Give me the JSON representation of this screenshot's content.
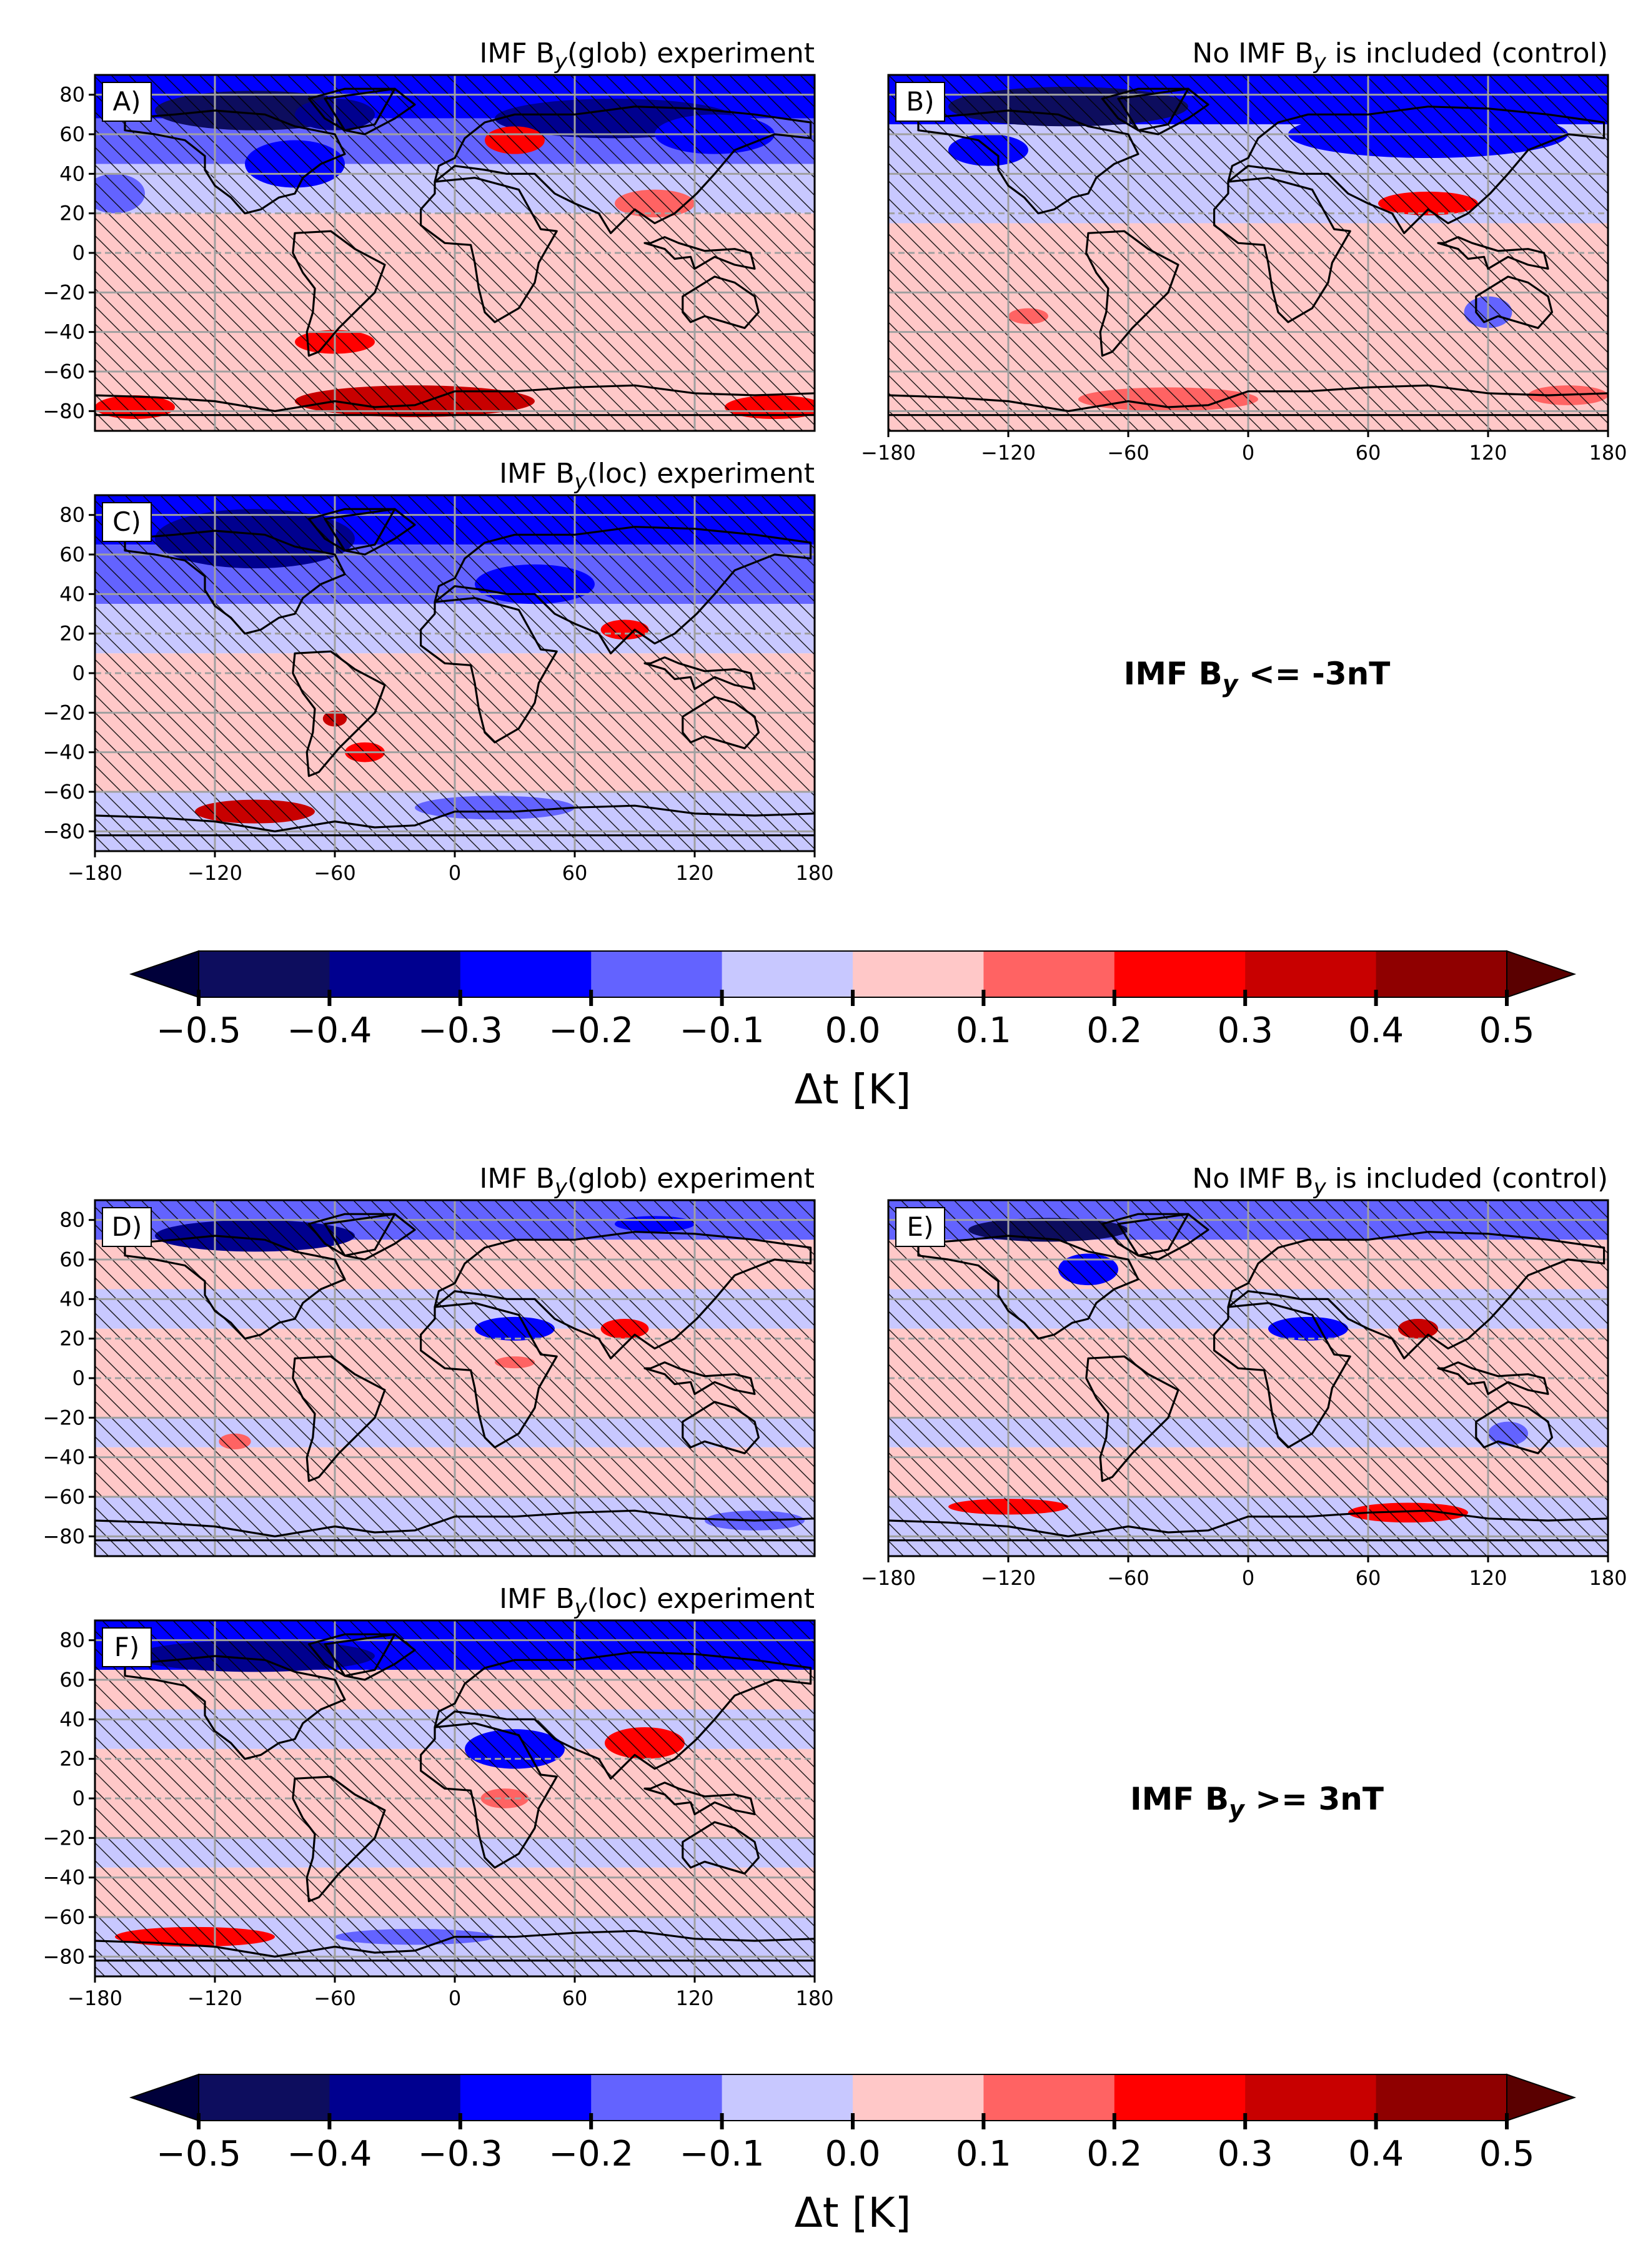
{
  "chart_data": [
    {
      "panel": "A)",
      "type": "heatmap",
      "title_pre": "IMF B",
      "title_sub": "y",
      "title_post": "(glob) experiment",
      "variable": "Δt [K]",
      "group": "IMF B_y <= -3nT",
      "xlim": [
        -180,
        180
      ],
      "ylim": [
        -90,
        90
      ],
      "xticks": [
        "−180",
        "−120",
        "−60",
        "0",
        "60",
        "120",
        "180"
      ],
      "yticks": [
        "80",
        "60",
        "40",
        "20",
        "0",
        "−20",
        "−40",
        "−60",
        "−80"
      ],
      "show_xticks": false,
      "show_yticks": true,
      "zonal_bands": [
        {
          "lat": [
            68,
            90
          ],
          "value": -0.25
        },
        {
          "lat": [
            45,
            68
          ],
          "value": -0.12
        },
        {
          "lat": [
            20,
            45
          ],
          "value": -0.05
        },
        {
          "lat": [
            -15,
            20
          ],
          "value": 0.04
        },
        {
          "lat": [
            -60,
            -15
          ],
          "value": 0.05
        },
        {
          "lat": [
            -90,
            -60
          ],
          "value": 0.08
        }
      ],
      "anomalies": [
        {
          "lon": -100,
          "lat": 72,
          "rlon": 50,
          "rlat": 10,
          "value": -0.45
        },
        {
          "lon": -60,
          "lat": 70,
          "rlon": 20,
          "rlat": 8,
          "value": -0.4
        },
        {
          "lon": 80,
          "lat": 68,
          "rlon": 60,
          "rlat": 10,
          "value": -0.32
        },
        {
          "lon": 130,
          "lat": 60,
          "rlon": 30,
          "rlat": 10,
          "value": -0.25
        },
        {
          "lon": -80,
          "lat": 45,
          "rlon": 25,
          "rlat": 12,
          "value": -0.25
        },
        {
          "lon": 30,
          "lat": 57,
          "rlon": 15,
          "rlat": 7,
          "value": 0.25
        },
        {
          "lon": 100,
          "lat": 25,
          "rlon": 20,
          "rlat": 7,
          "value": 0.18
        },
        {
          "lon": -60,
          "lat": -45,
          "rlon": 20,
          "rlat": 6,
          "value": 0.2
        },
        {
          "lon": -20,
          "lat": -75,
          "rlon": 60,
          "rlat": 8,
          "value": 0.3
        },
        {
          "lon": -160,
          "lat": -78,
          "rlon": 20,
          "rlat": 6,
          "value": 0.28
        },
        {
          "lon": 160,
          "lat": -78,
          "rlon": 25,
          "rlat": 6,
          "value": 0.25
        },
        {
          "lon": -170,
          "lat": 30,
          "rlon": 15,
          "rlat": 10,
          "value": -0.18
        }
      ]
    },
    {
      "panel": "B)",
      "type": "heatmap",
      "title_pre": "No IMF B",
      "title_sub": "y",
      "title_post": " is included (control)",
      "variable": "Δt [K]",
      "group": "IMF B_y <= -3nT",
      "xlim": [
        -180,
        180
      ],
      "ylim": [
        -90,
        90
      ],
      "xticks": [
        "−180",
        "−120",
        "−60",
        "0",
        "60",
        "120",
        "180"
      ],
      "yticks": [
        "80",
        "60",
        "40",
        "20",
        "0",
        "−20",
        "−40",
        "−60",
        "−80"
      ],
      "show_xticks": true,
      "show_yticks": false,
      "zonal_bands": [
        {
          "lat": [
            65,
            90
          ],
          "value": -0.22
        },
        {
          "lat": [
            40,
            65
          ],
          "value": -0.1
        },
        {
          "lat": [
            15,
            40
          ],
          "value": -0.04
        },
        {
          "lat": [
            -60,
            15
          ],
          "value": 0.05
        },
        {
          "lat": [
            -90,
            -60
          ],
          "value": 0.06
        }
      ],
      "anomalies": [
        {
          "lon": -90,
          "lat": 74,
          "rlon": 60,
          "rlat": 10,
          "value": -0.42
        },
        {
          "lon": 90,
          "lat": 60,
          "rlon": 70,
          "rlat": 12,
          "value": -0.3
        },
        {
          "lon": -130,
          "lat": 52,
          "rlon": 20,
          "rlat": 8,
          "value": -0.28
        },
        {
          "lon": 90,
          "lat": 25,
          "rlon": 25,
          "rlat": 6,
          "value": 0.25
        },
        {
          "lon": 120,
          "lat": -30,
          "rlon": 12,
          "rlat": 8,
          "value": -0.18
        },
        {
          "lon": -110,
          "lat": -32,
          "rlon": 10,
          "rlat": 4,
          "value": 0.15
        },
        {
          "lon": -40,
          "lat": -74,
          "rlon": 45,
          "rlat": 6,
          "value": 0.18
        },
        {
          "lon": 160,
          "lat": -72,
          "rlon": 20,
          "rlat": 5,
          "value": 0.15
        }
      ]
    },
    {
      "panel": "C)",
      "type": "heatmap",
      "title_pre": "IMF B",
      "title_sub": "y",
      "title_post": "(loc) experiment",
      "variable": "Δt [K]",
      "group": "IMF B_y <= -3nT",
      "xlim": [
        -180,
        180
      ],
      "ylim": [
        -90,
        90
      ],
      "xticks": [
        "−180",
        "−120",
        "−60",
        "0",
        "60",
        "120",
        "180"
      ],
      "yticks": [
        "80",
        "60",
        "40",
        "20",
        "0",
        "−20",
        "−40",
        "−60",
        "−80"
      ],
      "show_xticks": true,
      "show_yticks": true,
      "zonal_bands": [
        {
          "lat": [
            65,
            90
          ],
          "value": -0.25
        },
        {
          "lat": [
            35,
            65
          ],
          "value": -0.12
        },
        {
          "lat": [
            10,
            35
          ],
          "value": -0.05
        },
        {
          "lat": [
            -60,
            10
          ],
          "value": 0.05
        },
        {
          "lat": [
            -90,
            -60
          ],
          "value": -0.05
        }
      ],
      "anomalies": [
        {
          "lon": -100,
          "lat": 68,
          "rlon": 50,
          "rlat": 15,
          "value": -0.35
        },
        {
          "lon": 20,
          "lat": 80,
          "rlon": 60,
          "rlat": 6,
          "value": -0.3
        },
        {
          "lon": 40,
          "lat": 45,
          "rlon": 30,
          "rlat": 10,
          "value": -0.28
        },
        {
          "lon": 85,
          "lat": 22,
          "rlon": 12,
          "rlat": 5,
          "value": 0.2
        },
        {
          "lon": -60,
          "lat": -23,
          "rlon": 6,
          "rlat": 4,
          "value": 0.3
        },
        {
          "lon": -45,
          "lat": -40,
          "rlon": 10,
          "rlat": 5,
          "value": 0.2
        },
        {
          "lon": -100,
          "lat": -70,
          "rlon": 30,
          "rlat": 6,
          "value": 0.35
        },
        {
          "lon": 20,
          "lat": -68,
          "rlon": 40,
          "rlat": 6,
          "value": -0.15
        }
      ]
    },
    {
      "panel": "D)",
      "type": "heatmap",
      "title_pre": "IMF B",
      "title_sub": "y",
      "title_post": "(glob) experiment",
      "variable": "Δt [K]",
      "group": "IMF B_y >= 3nT",
      "xlim": [
        -180,
        180
      ],
      "ylim": [
        -90,
        90
      ],
      "xticks": [
        "−180",
        "−120",
        "−60",
        "0",
        "60",
        "120",
        "180"
      ],
      "yticks": [
        "80",
        "60",
        "40",
        "20",
        "0",
        "−20",
        "−40",
        "−60",
        "−80"
      ],
      "show_xticks": false,
      "show_yticks": true,
      "zonal_bands": [
        {
          "lat": [
            70,
            90
          ],
          "value": -0.2
        },
        {
          "lat": [
            45,
            70
          ],
          "value": 0.04
        },
        {
          "lat": [
            25,
            45
          ],
          "value": -0.05
        },
        {
          "lat": [
            -20,
            25
          ],
          "value": 0.05
        },
        {
          "lat": [
            -35,
            -20
          ],
          "value": -0.05
        },
        {
          "lat": [
            -60,
            -35
          ],
          "value": 0.05
        },
        {
          "lat": [
            -90,
            -60
          ],
          "value": -0.05
        }
      ],
      "anomalies": [
        {
          "lon": -100,
          "lat": 72,
          "rlon": 50,
          "rlat": 8,
          "value": -0.4
        },
        {
          "lon": 100,
          "lat": 78,
          "rlon": 20,
          "rlat": 4,
          "value": -0.25
        },
        {
          "lon": 30,
          "lat": 25,
          "rlon": 20,
          "rlat": 6,
          "value": -0.25
        },
        {
          "lon": 85,
          "lat": 25,
          "rlon": 12,
          "rlat": 5,
          "value": 0.22
        },
        {
          "lon": 30,
          "lat": 8,
          "rlon": 10,
          "rlat": 3,
          "value": 0.15
        },
        {
          "lon": -110,
          "lat": -32,
          "rlon": 8,
          "rlat": 4,
          "value": 0.15
        },
        {
          "lon": 150,
          "lat": -72,
          "rlon": 25,
          "rlat": 5,
          "value": -0.2
        }
      ]
    },
    {
      "panel": "E)",
      "type": "heatmap",
      "title_pre": "No IMF B",
      "title_sub": "y",
      "title_post": " is included (control)",
      "variable": "Δt [K]",
      "group": "IMF B_y >= 3nT",
      "xlim": [
        -180,
        180
      ],
      "ylim": [
        -90,
        90
      ],
      "xticks": [
        "−180",
        "−120",
        "−60",
        "0",
        "60",
        "120",
        "180"
      ],
      "yticks": [
        "80",
        "60",
        "40",
        "20",
        "0",
        "−20",
        "−40",
        "−60",
        "−80"
      ],
      "show_xticks": true,
      "show_yticks": false,
      "zonal_bands": [
        {
          "lat": [
            70,
            90
          ],
          "value": -0.18
        },
        {
          "lat": [
            45,
            70
          ],
          "value": 0.04
        },
        {
          "lat": [
            25,
            45
          ],
          "value": -0.05
        },
        {
          "lat": [
            -20,
            25
          ],
          "value": 0.05
        },
        {
          "lat": [
            -35,
            -20
          ],
          "value": -0.05
        },
        {
          "lat": [
            -60,
            -35
          ],
          "value": 0.05
        },
        {
          "lat": [
            -90,
            -60
          ],
          "value": -0.04
        }
      ],
      "anomalies": [
        {
          "lon": -100,
          "lat": 75,
          "rlon": 40,
          "rlat": 6,
          "value": -0.42
        },
        {
          "lon": -80,
          "lat": 55,
          "rlon": 15,
          "rlat": 8,
          "value": -0.25
        },
        {
          "lon": 30,
          "lat": 25,
          "rlon": 20,
          "rlat": 6,
          "value": -0.25
        },
        {
          "lon": 85,
          "lat": 25,
          "rlon": 10,
          "rlat": 5,
          "value": 0.3
        },
        {
          "lon": -120,
          "lat": -65,
          "rlon": 30,
          "rlat": 4,
          "value": 0.22
        },
        {
          "lon": 80,
          "lat": -68,
          "rlon": 30,
          "rlat": 5,
          "value": 0.25
        },
        {
          "lon": 130,
          "lat": -28,
          "rlon": 10,
          "rlat": 6,
          "value": -0.12
        }
      ]
    },
    {
      "panel": "F)",
      "type": "heatmap",
      "title_pre": "IMF B",
      "title_sub": "y",
      "title_post": "(loc) experiment",
      "variable": "Δt [K]",
      "group": "IMF B_y >= 3nT",
      "xlim": [
        -180,
        180
      ],
      "ylim": [
        -90,
        90
      ],
      "xticks": [
        "−180",
        "−120",
        "−60",
        "0",
        "60",
        "120",
        "180"
      ],
      "yticks": [
        "80",
        "60",
        "40",
        "20",
        "0",
        "−20",
        "−40",
        "−60",
        "−80"
      ],
      "show_xticks": true,
      "show_yticks": true,
      "zonal_bands": [
        {
          "lat": [
            65,
            90
          ],
          "value": -0.22
        },
        {
          "lat": [
            45,
            65
          ],
          "value": 0.04
        },
        {
          "lat": [
            25,
            45
          ],
          "value": -0.05
        },
        {
          "lat": [
            -20,
            25
          ],
          "value": 0.05
        },
        {
          "lat": [
            -35,
            -20
          ],
          "value": -0.04
        },
        {
          "lat": [
            -60,
            -35
          ],
          "value": 0.05
        },
        {
          "lat": [
            -90,
            -60
          ],
          "value": -0.05
        }
      ],
      "anomalies": [
        {
          "lon": -100,
          "lat": 72,
          "rlon": 60,
          "rlat": 8,
          "value": -0.4
        },
        {
          "lon": 30,
          "lat": 25,
          "rlon": 25,
          "rlat": 10,
          "value": -0.3
        },
        {
          "lon": 95,
          "lat": 28,
          "rlon": 20,
          "rlat": 8,
          "value": 0.2
        },
        {
          "lon": 25,
          "lat": 0,
          "rlon": 12,
          "rlat": 5,
          "value": 0.15
        },
        {
          "lon": -130,
          "lat": -70,
          "rlon": 40,
          "rlat": 5,
          "value": 0.25
        },
        {
          "lon": -20,
          "lat": -70,
          "rlon": 40,
          "rlat": 4,
          "value": -0.15
        }
      ]
    }
  ],
  "labels": {
    "group_neg_pre": "IMF B",
    "group_neg_sub": "y",
    "group_neg_post": " <= -3nT",
    "group_pos_pre": "IMF B",
    "group_pos_sub": "y",
    "group_pos_post": " >= 3nT"
  },
  "colorbar": {
    "label": "Δt [K]",
    "ticks": [
      "−0.5",
      "−0.4",
      "−0.3",
      "−0.2",
      "−0.1",
      "0.0",
      "0.1",
      "0.2",
      "0.3",
      "0.4",
      "0.5"
    ],
    "levels": [
      -0.5,
      -0.4,
      -0.3,
      -0.2,
      -0.1,
      0.0,
      0.1,
      0.2,
      0.3,
      0.4,
      0.5
    ],
    "colors": [
      "#0d0d5e",
      "#00008f",
      "#0000ff",
      "#6363ff",
      "#c8c8ff",
      "#ffc8c8",
      "#ff6363",
      "#ff0000",
      "#c80000",
      "#8f0000"
    ],
    "under_color": "#00003a",
    "over_color": "#5a0000"
  }
}
